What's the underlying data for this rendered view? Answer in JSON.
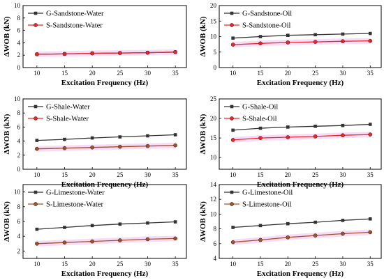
{
  "colors": {
    "G": "#333333",
    "S": "#e8262b",
    "S_brown": "#a0522d",
    "band": "#f7d6f3"
  },
  "chart_data": [
    {
      "type": "line",
      "x": [
        10,
        15,
        20,
        25,
        30,
        35
      ],
      "xlabel": "Excitation Frequency (Hz)",
      "ylabel": "ΔWOB (kN)",
      "xticks": [
        10,
        15,
        20,
        25,
        30,
        35
      ],
      "ylim": [
        0,
        10
      ],
      "yticks": [
        0,
        2,
        4,
        6,
        8,
        10
      ],
      "legend_position": "top-left",
      "series": [
        {
          "name": "G-Sandstone-Water",
          "color_key": "G",
          "marker": "square",
          "values": [
            2.15,
            2.2,
            2.3,
            2.35,
            2.4,
            2.5
          ]
        },
        {
          "name": "S-Sandstone-Water",
          "color_key": "S",
          "marker": "circle",
          "band": true,
          "values": [
            2.15,
            2.2,
            2.3,
            2.35,
            2.4,
            2.5
          ]
        }
      ]
    },
    {
      "type": "line",
      "x": [
        10,
        15,
        20,
        25,
        30,
        35
      ],
      "xlabel": "Excitation Frequency (Hz)",
      "ylabel": "ΔWOB (kN)",
      "xticks": [
        10,
        15,
        20,
        25,
        30,
        35
      ],
      "ylim": [
        0,
        20
      ],
      "yticks": [
        0,
        5,
        10,
        15,
        20
      ],
      "legend_position": "top-left",
      "series": [
        {
          "name": "G-Sandstone-Oil",
          "color_key": "G",
          "marker": "square",
          "values": [
            9.5,
            10.0,
            10.4,
            10.6,
            10.8,
            11.0
          ]
        },
        {
          "name": "S-Sandstone-Oil",
          "color_key": "S",
          "marker": "circle",
          "band": true,
          "values": [
            7.4,
            7.8,
            8.1,
            8.3,
            8.5,
            8.6
          ]
        }
      ]
    },
    {
      "type": "line",
      "x": [
        10,
        15,
        20,
        25,
        30,
        35
      ],
      "xlabel": "Excitation Frequency (Hz)",
      "ylabel": "ΔWOB (kN)",
      "xticks": [
        10,
        15,
        20,
        25,
        30,
        35
      ],
      "ylim": [
        0,
        10
      ],
      "yticks": [
        0,
        2,
        4,
        6,
        8,
        10
      ],
      "legend_position": "top-left",
      "series": [
        {
          "name": "G-Shale-Water",
          "color_key": "G",
          "marker": "square",
          "values": [
            4.1,
            4.25,
            4.45,
            4.6,
            4.75,
            4.9
          ]
        },
        {
          "name": "S-Shale-Water",
          "color_key": "S_brown",
          "legend_color_key": "S",
          "marker": "circle",
          "band": true,
          "values": [
            2.9,
            3.0,
            3.1,
            3.2,
            3.3,
            3.4
          ]
        }
      ]
    },
    {
      "type": "line",
      "x": [
        10,
        15,
        20,
        25,
        30,
        35
      ],
      "xlabel": "Excitation Frequency (Hz)",
      "ylabel": "ΔWOB (kN)",
      "xticks": [
        10,
        15,
        20,
        25,
        30,
        35
      ],
      "ylim": [
        7,
        25
      ],
      "yticks": [
        10,
        15,
        20,
        25
      ],
      "legend_position": "top-left",
      "series": [
        {
          "name": "G-Shale-Oil",
          "color_key": "G",
          "marker": "square",
          "values": [
            17.0,
            17.5,
            17.8,
            18.0,
            18.2,
            18.5
          ]
        },
        {
          "name": "S-Shale-Oil",
          "color_key": "S",
          "marker": "circle",
          "band": true,
          "values": [
            14.5,
            15.0,
            15.2,
            15.4,
            15.7,
            15.9
          ]
        }
      ]
    },
    {
      "type": "line",
      "x": [
        10,
        15,
        20,
        25,
        30,
        35
      ],
      "xlabel": "Excitation Frequency (Hz)",
      "ylabel": "ΔWOB (kN)",
      "xticks": [
        10,
        15,
        20,
        25,
        30,
        35
      ],
      "ylim": [
        1,
        11
      ],
      "yticks": [
        2,
        4,
        6,
        8,
        10
      ],
      "legend_position": "top-left",
      "series": [
        {
          "name": "G-Limestone-Water",
          "color_key": "G",
          "marker": "square",
          "values": [
            4.95,
            5.2,
            5.45,
            5.65,
            5.8,
            5.95
          ]
        },
        {
          "name": "S-Limestone-Water",
          "color_key": "S_brown",
          "marker": "circle",
          "band": true,
          "values": [
            3.0,
            3.15,
            3.3,
            3.45,
            3.6,
            3.7
          ]
        }
      ]
    },
    {
      "type": "line",
      "x": [
        10,
        15,
        20,
        25,
        30,
        35
      ],
      "xlabel": "Excitation Frequency (Hz)",
      "ylabel": "ΔWOB (kN)",
      "xticks": [
        10,
        15,
        20,
        25,
        30,
        35
      ],
      "ylim": [
        4,
        14
      ],
      "yticks": [
        4,
        6,
        8,
        10,
        12,
        14
      ],
      "legend_position": "top-left",
      "series": [
        {
          "name": "G-Limestone-Oil",
          "color_key": "G",
          "marker": "square",
          "values": [
            8.2,
            8.45,
            8.7,
            8.9,
            9.15,
            9.35
          ]
        },
        {
          "name": "S-Limestone-Oil",
          "color_key": "S_brown",
          "marker": "circle",
          "band": true,
          "values": [
            6.2,
            6.5,
            6.85,
            7.1,
            7.35,
            7.55
          ]
        }
      ]
    }
  ]
}
